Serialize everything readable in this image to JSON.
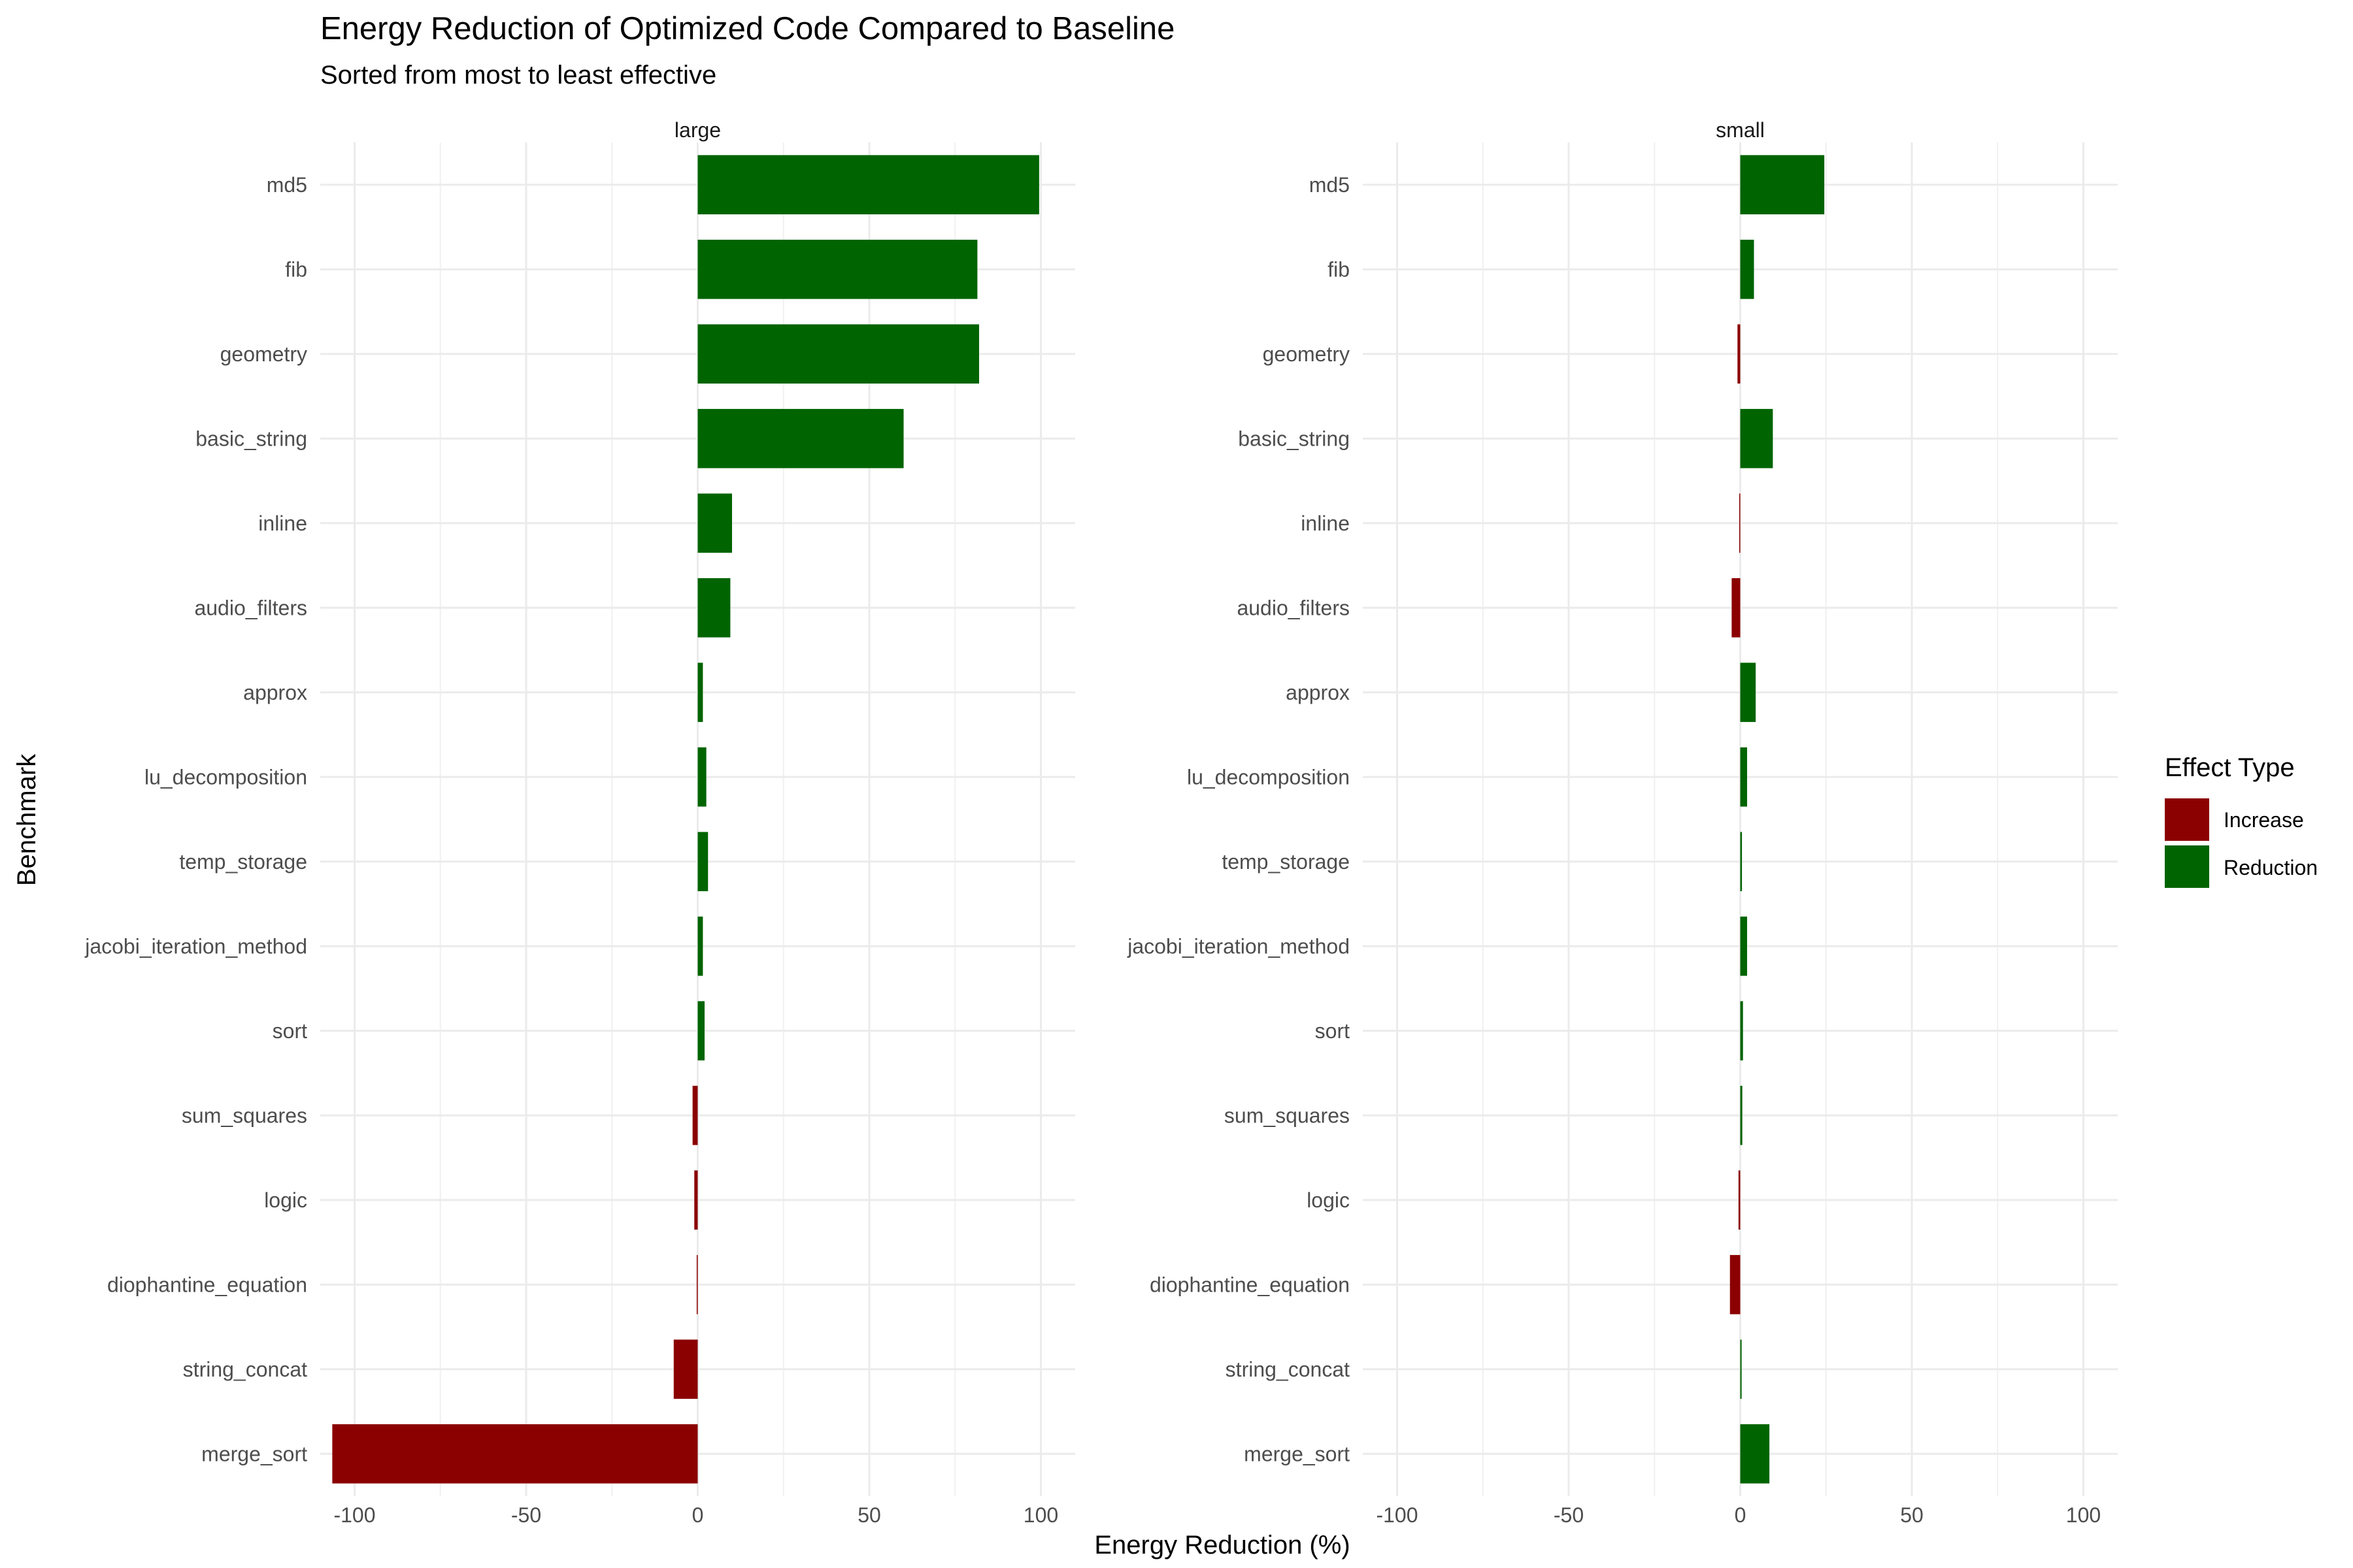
{
  "chart_data": {
    "type": "bar",
    "orientation": "horizontal",
    "title": "Energy Reduction of Optimized Code Compared to Baseline",
    "subtitle": "Sorted from most to least effective",
    "xlabel": "Energy Reduction (%)",
    "ylabel": "Benchmark",
    "xlim": [
      -110,
      110
    ],
    "x_ticks": [
      -100,
      -50,
      0,
      50,
      100
    ],
    "x_tick_labels": [
      "-100",
      "-50",
      "0",
      "50",
      "100"
    ],
    "grid": true,
    "legend": {
      "title": "Effect Type",
      "position": "right",
      "entries": [
        {
          "label": "Increase",
          "color": "#8B0000"
        },
        {
          "label": "Reduction",
          "color": "#006400"
        }
      ]
    },
    "categories": [
      "md5",
      "fib",
      "geometry",
      "basic_string",
      "inline",
      "audio_filters",
      "approx",
      "lu_decomposition",
      "temp_storage",
      "jacobi_iteration_method",
      "sort",
      "sum_squares",
      "logic",
      "diophantine_equation",
      "string_concat",
      "merge_sort"
    ],
    "panels": [
      {
        "name": "large",
        "values": [
          99.5,
          81.5,
          82,
          60,
          10,
          9.5,
          1.5,
          2.5,
          3,
          1.5,
          2,
          -1.5,
          -1,
          -0.3,
          -7,
          -106.5
        ]
      },
      {
        "name": "small",
        "values": [
          24.5,
          4,
          -0.8,
          9.5,
          -0.3,
          -2.5,
          4.5,
          2,
          0.5,
          2,
          0.8,
          0.6,
          -0.5,
          -3,
          0.4,
          8.5
        ]
      }
    ]
  }
}
